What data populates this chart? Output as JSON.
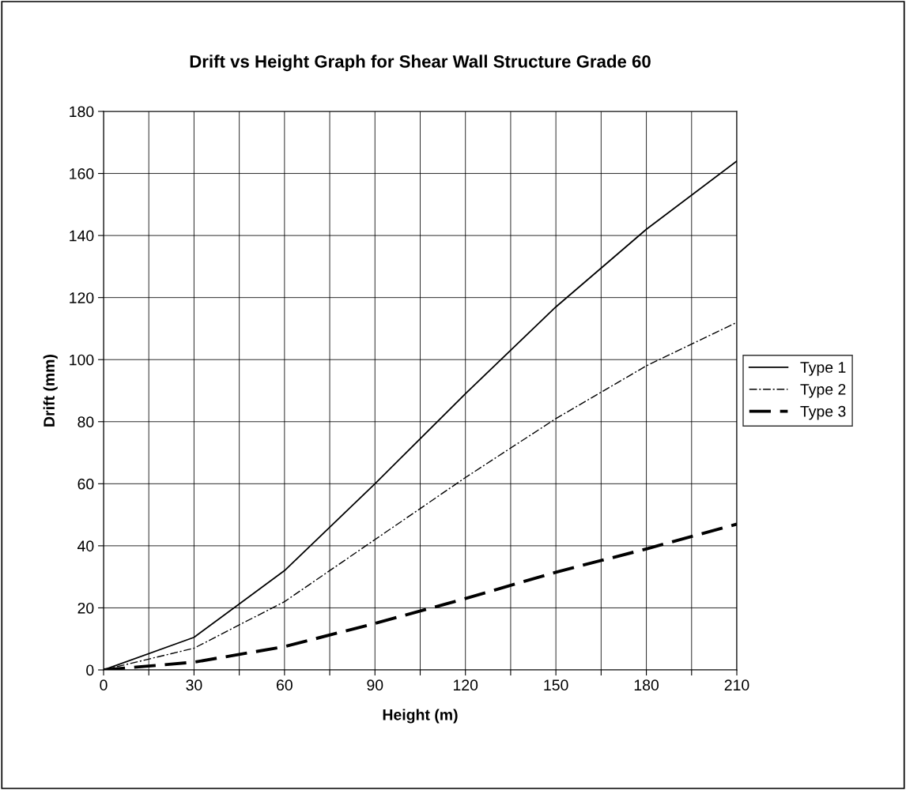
{
  "chart_data": {
    "type": "line",
    "title": "Drift vs Height Graph for Shear Wall Structure Grade 60",
    "xlabel": "Height (m)",
    "ylabel": "Drift (mm)",
    "x": [
      0,
      30,
      60,
      90,
      120,
      150,
      180,
      210
    ],
    "series": [
      {
        "name": "Type 1",
        "color": "#000000",
        "line_style": "solid",
        "values": [
          0,
          10.5,
          32,
          60,
          89,
          117,
          142,
          164
        ]
      },
      {
        "name": "Type 2",
        "color": "#000000",
        "line_style": "dashdot",
        "values": [
          0,
          7,
          22,
          42,
          62,
          81,
          98,
          112
        ]
      },
      {
        "name": "Type 3",
        "color": "#000000",
        "line_style": "dashed",
        "values": [
          0,
          2.5,
          7.5,
          15,
          23,
          31.5,
          39,
          47
        ]
      }
    ],
    "xlim": [
      0,
      210
    ],
    "ylim": [
      0,
      180
    ],
    "xticks": [
      0,
      {
        "value": 15,
        "label": null
      },
      30,
      {
        "value": 45,
        "label": null
      },
      60,
      {
        "value": 75,
        "label": null
      },
      90,
      {
        "value": 105,
        "label": null
      },
      120,
      {
        "value": 135,
        "label": null
      },
      150,
      {
        "value": 165,
        "label": null
      },
      180,
      {
        "value": 195,
        "label": null
      },
      210
    ],
    "yticks": [
      0,
      20,
      40,
      60,
      80,
      100,
      120,
      140,
      160,
      180
    ],
    "grid": true,
    "legend": "right",
    "marker": "none"
  }
}
